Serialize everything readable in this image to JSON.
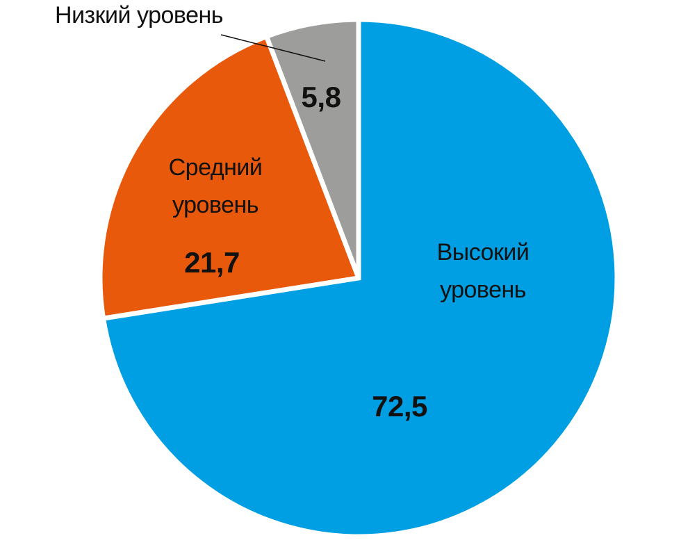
{
  "chart_data": {
    "type": "pie",
    "categories": [
      "Высокий уровень",
      "Средний уровень",
      "Низкий уровень"
    ],
    "values": [
      72.5,
      21.7,
      5.8
    ],
    "value_labels": [
      "72,5",
      "21,7",
      "5,8"
    ],
    "colors": [
      "#009fe3",
      "#e8590c",
      "#9d9d9c"
    ]
  }
}
